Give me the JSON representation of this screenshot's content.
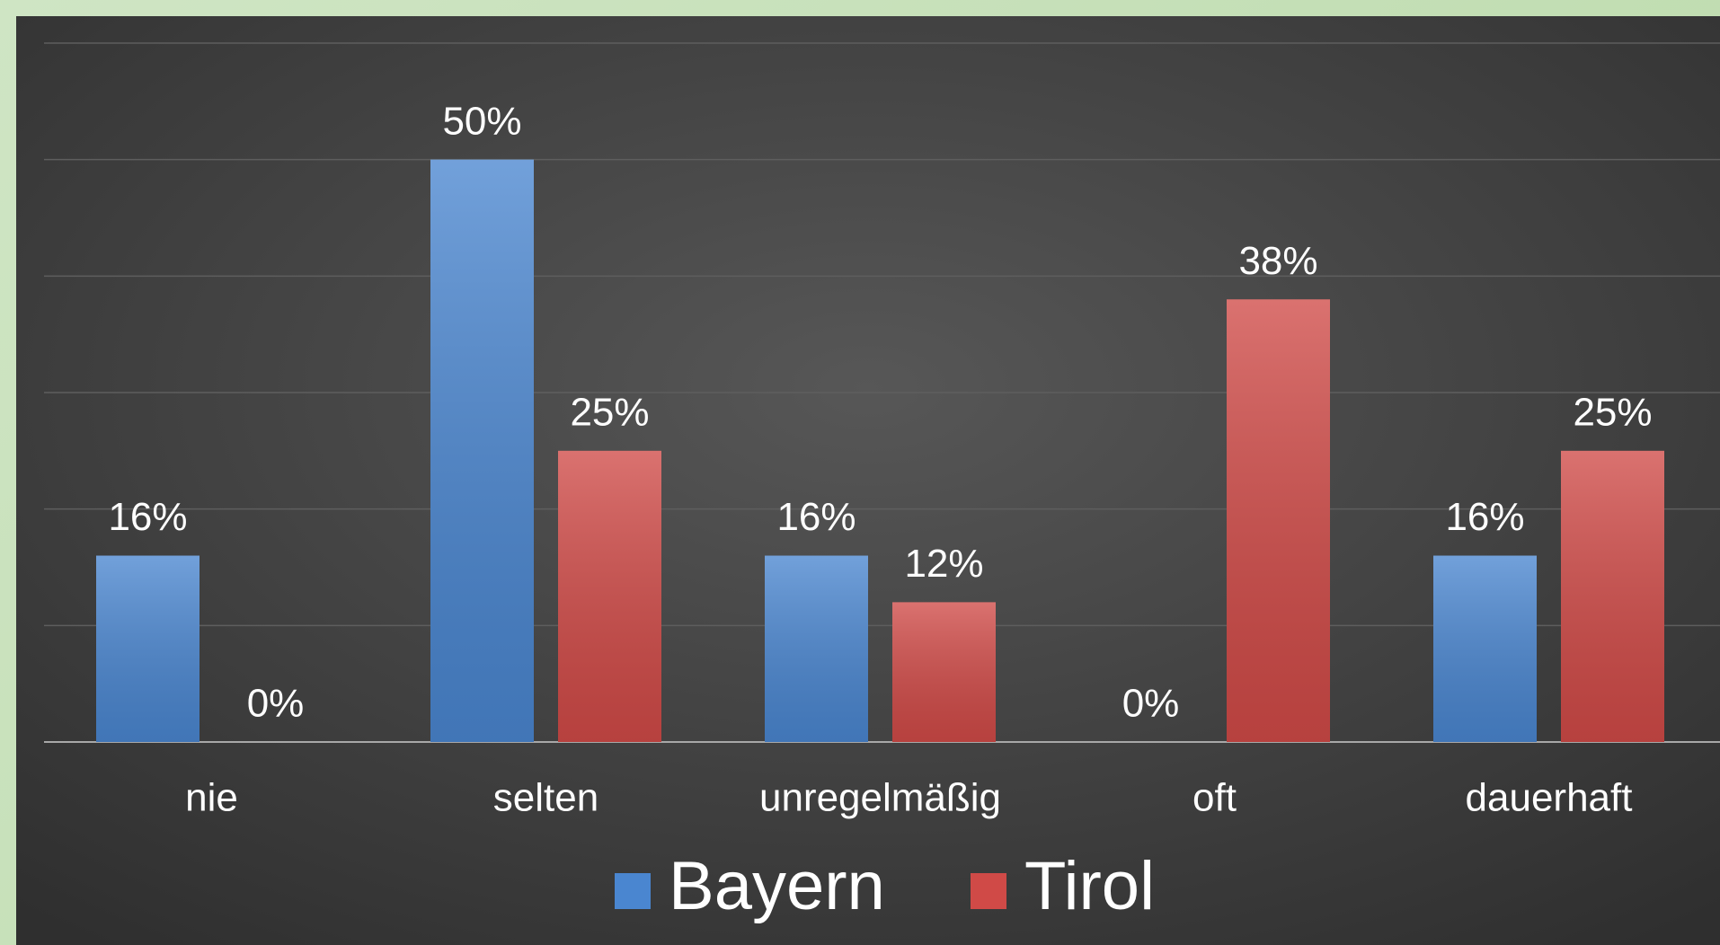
{
  "chart_data": {
    "type": "bar",
    "categories": [
      "nie",
      "selten",
      "unregelmäßig",
      "oft",
      "dauerhaft"
    ],
    "series": [
      {
        "name": "Bayern",
        "color": "#4a86d0",
        "values": [
          16,
          50,
          16,
          0,
          16
        ],
        "value_labels": [
          "16%",
          "50%",
          "16%",
          "0%",
          "16%"
        ]
      },
      {
        "name": "Tirol",
        "color": "#d04a47",
        "values": [
          0,
          25,
          12,
          38,
          25
        ],
        "value_labels": [
          "0%",
          "25%",
          "12%",
          "38%",
          "25%"
        ]
      }
    ],
    "ylim": [
      0,
      60
    ],
    "yticks": [
      0,
      10,
      20,
      30,
      40,
      50,
      60
    ],
    "grid": true,
    "legend": "bottom"
  }
}
